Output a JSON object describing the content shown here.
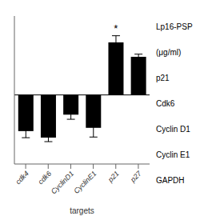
{
  "chart_data": {
    "type": "bar",
    "categories": [
      "cdk4",
      "cdk6",
      "CyclinD1",
      "CyclinE1",
      "p21",
      "p27"
    ],
    "values": [
      -0.55,
      -0.65,
      -0.3,
      -0.5,
      0.8,
      0.58
    ],
    "errors": [
      0.1,
      0.06,
      0.07,
      0.14,
      0.1,
      0.04
    ],
    "color": "#000000",
    "ylim": [
      -1.05,
      1.2
    ],
    "xlabel": "targets",
    "tick_labels": "x",
    "grid": false,
    "annotations": [
      {
        "text": "*",
        "category": "p21"
      },
      {
        "text": "Lp16-PSP"
      },
      {
        "text": "(μg/ml)"
      },
      {
        "text": "p21"
      },
      {
        "text": "Cdk6"
      },
      {
        "text": "Cyclin D1"
      },
      {
        "text": "Cyclin E1"
      },
      {
        "text": "GAPDH"
      }
    ]
  }
}
